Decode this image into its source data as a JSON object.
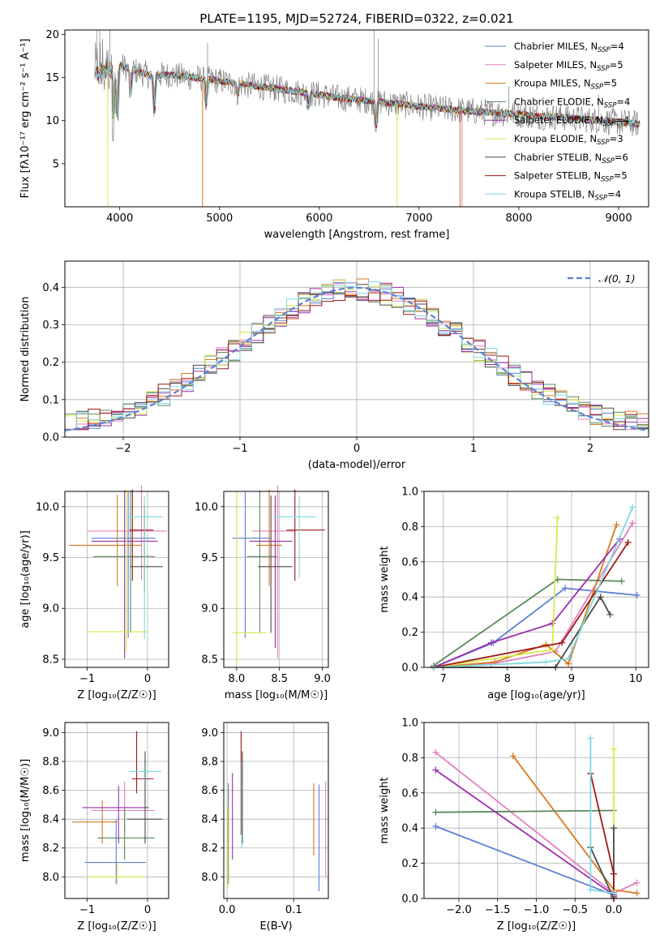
{
  "figure_title": "PLATE=1195, MJD=52724, FIBERID=0322, z=0.021",
  "colors": {
    "Chabrier MILES": "#5b7fd6",
    "Salpeter MILES": "#e37fbf",
    "Kroupa MILES": "#d67a1f",
    "Chabrier ELODIE": "#5a8a5a",
    "Salpeter ELODIE": "#9b2fae",
    "Kroupa ELODIE": "#d9e84a",
    "Chabrier STELIB": "#4a4a4a",
    "Salpeter STELIB": "#a01818",
    "Kroupa STELIB": "#7fd8e0",
    "data": "#808080",
    "normal": "#5b7fd6"
  },
  "chart_data": [
    {
      "id": "spectrum",
      "type": "line",
      "title": "PLATE=1195, MJD=52724, FIBERID=0322, z=0.021",
      "xlabel": "wavelength [Angstrom, rest frame]",
      "ylabel": "Flux [fλ10⁻¹⁷ erg cm⁻² s⁻¹ A⁻¹]",
      "xlim": [
        3450,
        9300
      ],
      "ylim": [
        0,
        20.5
      ],
      "xticks": [
        4000,
        5000,
        6000,
        7000,
        8000,
        9000
      ],
      "yticks": [
        5,
        10,
        15,
        20
      ],
      "grid": false,
      "legend_position": "top-right",
      "legend": [
        {
          "label": "Chabrier MILES, N",
          "sub": "SSP",
          "suffix": "=4"
        },
        {
          "label": "Salpeter MILES, N",
          "sub": "SSP",
          "suffix": "=5"
        },
        {
          "label": "Kroupa MILES, N",
          "sub": "SSP",
          "suffix": "=5"
        },
        {
          "label": "Chabrier ELODIE, N",
          "sub": "SSP",
          "suffix": "=4"
        },
        {
          "label": "Salpeter ELODIE, N",
          "sub": "SSP",
          "suffix": "=4"
        },
        {
          "label": "Kroupa ELODIE, N",
          "sub": "SSP",
          "suffix": "=3"
        },
        {
          "label": "Chabrier STELIB, N",
          "sub": "SSP",
          "suffix": "=6"
        },
        {
          "label": "Salpeter STELIB, N",
          "sub": "SSP",
          "suffix": "=5"
        },
        {
          "label": "Kroupa STELIB, N",
          "sub": "SSP",
          "suffix": "=4"
        }
      ],
      "continuum": {
        "x": [
          3750,
          3900,
          4000,
          4100,
          4300,
          4500,
          4800,
          5000,
          5200,
          5500,
          5800,
          6000,
          6200,
          6500,
          6800,
          7000,
          7200,
          7400,
          7600,
          7800,
          8000,
          8200,
          8400,
          8600,
          8800,
          9000,
          9200
        ],
        "y": [
          15.5,
          16.0,
          16.4,
          16.0,
          15.2,
          15.3,
          14.9,
          14.6,
          14.2,
          13.8,
          13.3,
          13.0,
          12.6,
          12.3,
          11.9,
          11.6,
          11.4,
          11.2,
          11.0,
          10.9,
          10.7,
          10.5,
          10.4,
          10.2,
          10.0,
          9.8,
          9.6
        ]
      }
    },
    {
      "id": "residuals",
      "type": "histogram",
      "xlabel": "(data-model)/error",
      "ylabel": "Normed distribution",
      "xlim": [
        -2.5,
        2.5
      ],
      "ylim": [
        0,
        0.47
      ],
      "xticks": [
        -2,
        -1,
        0,
        1,
        2
      ],
      "yticks": [
        0.0,
        0.1,
        0.2,
        0.3,
        0.4
      ],
      "grid": true,
      "legend_position": "top-right",
      "legend": [
        "𝒩(0, 1)"
      ],
      "bins": {
        "start": -2.5,
        "width": 0.1,
        "count": 50
      }
    },
    {
      "id": "age_vs_Z",
      "type": "scatter",
      "xlabel": "Z [log₁₀(Z/Z☉)]",
      "ylabel": "age  [log₁₀(age/yr)]",
      "xlim": [
        -1.37,
        0.35
      ],
      "ylim": [
        8.42,
        10.15
      ],
      "xticks": [
        -1,
        0
      ],
      "yticks": [
        8.5,
        9.0,
        9.5,
        10.0
      ],
      "grid": true,
      "points": [
        {
          "model": "Chabrier MILES",
          "x": -0.32,
          "y": 9.69,
          "xerr": [
            0.61,
            0.45
          ],
          "yerr": [
            0.98,
            0.45
          ]
        },
        {
          "model": "Salpeter MILES",
          "x": -0.1,
          "y": 9.76,
          "xerr": [
            0.9,
            0.42
          ],
          "yerr": [
            0.48,
            0.45
          ]
        },
        {
          "model": "Kroupa MILES",
          "x": -0.5,
          "y": 9.62,
          "xerr": [
            0.8,
            0.4
          ],
          "yerr": [
            0.4,
            0.5
          ]
        },
        {
          "model": "Chabrier ELODIE",
          "x": -0.28,
          "y": 9.51,
          "xerr": [
            0.62,
            0.4
          ],
          "yerr": [
            0.75,
            0.65
          ]
        },
        {
          "model": "Salpeter ELODIE",
          "x": -0.38,
          "y": 9.66,
          "xerr": [
            0.55,
            0.55
          ],
          "yerr": [
            1.15,
            0.5
          ]
        },
        {
          "model": "Kroupa ELODIE",
          "x": -0.35,
          "y": 8.77,
          "xerr": [
            0.65,
            0.38
          ],
          "yerr": [
            0.2,
            1.4
          ]
        },
        {
          "model": "Chabrier STELIB",
          "x": -0.05,
          "y": 9.41,
          "xerr": [
            0.24,
            0.3
          ],
          "yerr": [
            0.25,
            0.6
          ]
        },
        {
          "model": "Salpeter STELIB",
          "x": -0.25,
          "y": 9.77,
          "xerr": [
            0.05,
            0.35
          ],
          "yerr": [
            0.5,
            0.4
          ]
        },
        {
          "model": "Kroupa STELIB",
          "x": -0.05,
          "y": 9.9,
          "xerr": [
            0.3,
            0.3
          ],
          "yerr": [
            1.2,
            0.2
          ]
        }
      ]
    },
    {
      "id": "age_vs_mass",
      "type": "scatter",
      "xlabel": "mass [log₁₀(M/M☉)]",
      "ylabel": "",
      "xlim": [
        7.85,
        9.07
      ],
      "ylim": [
        8.42,
        10.15
      ],
      "xticks": [
        8.0,
        8.5,
        9.0
      ],
      "yticks": [
        8.5,
        9.0,
        9.5,
        10.0
      ],
      "grid": true,
      "points": [
        {
          "model": "Chabrier MILES",
          "x": 8.1,
          "y": 9.69,
          "xerr": [
            0.15,
            0.3
          ],
          "yerr": [
            0.98,
            0.45
          ]
        },
        {
          "model": "Salpeter MILES",
          "x": 8.48,
          "y": 9.76,
          "xerr": [
            0.3,
            0.2
          ],
          "yerr": [
            1.25,
            0.45
          ]
        },
        {
          "model": "Kroupa MILES",
          "x": 8.38,
          "y": 9.62,
          "xerr": [
            0.15,
            0.15
          ],
          "yerr": [
            0.4,
            0.55
          ]
        },
        {
          "model": "Chabrier ELODIE",
          "x": 8.27,
          "y": 9.51,
          "xerr": [
            0.15,
            0.2
          ],
          "yerr": [
            0.75,
            0.65
          ]
        },
        {
          "model": "Salpeter ELODIE",
          "x": 8.45,
          "y": 9.66,
          "xerr": [
            0.3,
            0.2
          ],
          "yerr": [
            1.05,
            0.45
          ]
        },
        {
          "model": "Kroupa ELODIE",
          "x": 8.0,
          "y": 8.76,
          "xerr": [
            0.05,
            0.35
          ],
          "yerr": [
            0.3,
            1.4
          ]
        },
        {
          "model": "Chabrier STELIB",
          "x": 8.4,
          "y": 9.41,
          "xerr": [
            0.15,
            0.25
          ],
          "yerr": [
            0.65,
            0.7
          ]
        },
        {
          "model": "Salpeter STELIB",
          "x": 8.68,
          "y": 9.77,
          "xerr": [
            0.1,
            0.35
          ],
          "yerr": [
            0.5,
            0.4
          ]
        },
        {
          "model": "Kroupa STELIB",
          "x": 8.73,
          "y": 9.9,
          "xerr": [
            0.3,
            0.2
          ],
          "yerr": [
            0.6,
            0.2
          ]
        }
      ]
    },
    {
      "id": "weight_vs_age",
      "type": "line",
      "xlabel": "age  [log₁₀(age/yr)]",
      "ylabel": "mass weight",
      "xlim": [
        6.7,
        10.2
      ],
      "ylim": [
        0,
        1.0
      ],
      "xticks": [
        7,
        8,
        9,
        10
      ],
      "yticks": [
        0.0,
        0.2,
        0.4,
        0.6,
        0.8,
        1.0
      ],
      "grid": true,
      "series": [
        {
          "model": "Chabrier MILES",
          "x": [
            6.85,
            7.78,
            8.9,
            10.02
          ],
          "y": [
            0.0,
            0.14,
            0.45,
            0.41
          ]
        },
        {
          "model": "Salpeter MILES",
          "x": [
            6.85,
            7.75,
            8.75,
            9.95
          ],
          "y": [
            0.0,
            0.02,
            0.09,
            0.82
          ]
        },
        {
          "model": "Kroupa MILES",
          "x": [
            6.85,
            7.8,
            8.6,
            8.95,
            9.7
          ],
          "y": [
            0.0,
            0.03,
            0.13,
            0.02,
            0.81
          ]
        },
        {
          "model": "Chabrier ELODIE",
          "x": [
            6.85,
            8.78,
            9.78
          ],
          "y": [
            0.01,
            0.5,
            0.49
          ]
        },
        {
          "model": "Salpeter ELODIE",
          "x": [
            6.85,
            7.75,
            8.7,
            9.75
          ],
          "y": [
            0.0,
            0.14,
            0.25,
            0.73
          ]
        },
        {
          "model": "Kroupa ELODIE",
          "x": [
            6.85,
            8.7,
            8.78
          ],
          "y": [
            0.0,
            0.1,
            0.85
          ]
        },
        {
          "model": "Chabrier STELIB",
          "x": [
            6.85,
            8.75,
            9.45,
            9.6
          ],
          "y": [
            0.0,
            0.0,
            0.4,
            0.3
          ]
        },
        {
          "model": "Salpeter STELIB",
          "x": [
            6.85,
            8.85,
            9.88
          ],
          "y": [
            0.0,
            0.14,
            0.71
          ]
        },
        {
          "model": "Kroupa STELIB",
          "x": [
            6.85,
            8.6,
            8.95,
            9.95
          ],
          "y": [
            0.0,
            0.03,
            0.05,
            0.91
          ]
        }
      ]
    },
    {
      "id": "mass_vs_Z",
      "type": "scatter",
      "xlabel": "Z [log₁₀(Z/Z☉)]",
      "ylabel": "mass [log₁₀(M/M☉)]",
      "xlim": [
        -1.37,
        0.35
      ],
      "ylim": [
        7.85,
        9.07
      ],
      "xticks": [
        -1,
        0
      ],
      "yticks": [
        8.0,
        8.2,
        8.4,
        8.6,
        8.8,
        9.0
      ],
      "grid": true,
      "points": [
        {
          "model": "Chabrier MILES",
          "x": -0.52,
          "y": 8.1,
          "xerr": [
            0.52,
            0.5
          ],
          "yerr": [
            0.15,
            0.3
          ]
        },
        {
          "model": "Salpeter MILES",
          "x": -0.38,
          "y": 8.46,
          "xerr": [
            0.55,
            0.5
          ],
          "yerr": [
            0.15,
            0.2
          ]
        },
        {
          "model": "Kroupa MILES",
          "x": -0.75,
          "y": 8.38,
          "xerr": [
            0.5,
            0.25
          ],
          "yerr": [
            0.15,
            0.15
          ]
        },
        {
          "model": "Chabrier ELODIE",
          "x": -0.38,
          "y": 8.27,
          "xerr": [
            0.45,
            0.5
          ],
          "yerr": [
            0.15,
            0.2
          ]
        },
        {
          "model": "Salpeter ELODIE",
          "x": -0.48,
          "y": 8.48,
          "xerr": [
            0.6,
            0.5
          ],
          "yerr": [
            0.25,
            0.15
          ]
        },
        {
          "model": "Kroupa ELODIE",
          "x": -0.5,
          "y": 8.0,
          "xerr": [
            0.5,
            0.45
          ],
          "yerr": [
            0.05,
            0.1
          ]
        },
        {
          "model": "Chabrier STELIB",
          "x": -0.04,
          "y": 8.4,
          "xerr": [
            0.3,
            0.28
          ],
          "yerr": [
            0.17,
            0.47
          ]
        },
        {
          "model": "Salpeter STELIB",
          "x": -0.18,
          "y": 8.68,
          "xerr": [
            0.08,
            0.28
          ],
          "yerr": [
            0.1,
            0.33
          ]
        },
        {
          "model": "Kroupa STELIB",
          "x": -0.05,
          "y": 8.73,
          "xerr": [
            0.25,
            0.28
          ],
          "yerr": [
            0.06,
            0.05
          ]
        }
      ]
    },
    {
      "id": "mass_vs_ebv",
      "type": "scatter",
      "xlabel": "E(B-V)",
      "ylabel": "",
      "xlim": [
        -0.005,
        0.152
      ],
      "ylim": [
        7.85,
        9.07
      ],
      "xticks": [
        0.0,
        0.1
      ],
      "yticks": [
        8.0,
        8.2,
        8.4,
        8.6,
        8.8,
        9.0
      ],
      "grid": true,
      "points": [
        {
          "model": "Chabrier MILES",
          "x": 0.138,
          "y": 8.27,
          "yerr": [
            0.37,
            0.37
          ]
        },
        {
          "model": "Salpeter MILES",
          "x": 0.148,
          "y": 8.33,
          "yerr": [
            0.33,
            0.33
          ]
        },
        {
          "model": "Kroupa MILES",
          "x": 0.13,
          "y": 8.4,
          "yerr": [
            0.25,
            0.25
          ]
        },
        {
          "model": "Chabrier ELODIE",
          "x": 0.002,
          "y": 8.3,
          "yerr": [
            0.35,
            0.35
          ]
        },
        {
          "model": "Salpeter ELODIE",
          "x": 0.008,
          "y": 8.42,
          "yerr": [
            0.3,
            0.3
          ]
        },
        {
          "model": "Kroupa ELODIE",
          "x": 0.001,
          "y": 8.2,
          "yerr": [
            0.28,
            0.28
          ]
        },
        {
          "model": "Chabrier STELIB",
          "x": 0.023,
          "y": 8.55,
          "yerr": [
            0.32,
            0.32
          ]
        },
        {
          "model": "Salpeter STELIB",
          "x": 0.021,
          "y": 8.65,
          "yerr": [
            0.36,
            0.36
          ]
        },
        {
          "model": "Kroupa STELIB",
          "x": 0.022,
          "y": 8.5,
          "yerr": [
            0.3,
            0.3
          ]
        }
      ]
    },
    {
      "id": "weight_vs_Z",
      "type": "line",
      "xlabel": "Z [log₁₀(Z/Z☉)]",
      "ylabel": "mass weight",
      "xlim": [
        -2.45,
        0.45
      ],
      "ylim": [
        0,
        1.0
      ],
      "xticks": [
        -2.0,
        -1.5,
        -1.0,
        -0.5,
        0.0
      ],
      "yticks": [
        0.0,
        0.2,
        0.4,
        0.6,
        0.8,
        1.0
      ],
      "grid": true,
      "series": [
        {
          "model": "Chabrier MILES",
          "x": [
            -2.3,
            0.0
          ],
          "y": [
            0.41,
            0.02
          ]
        },
        {
          "model": "Salpeter MILES",
          "x": [
            -2.3,
            0.0,
            0.3
          ],
          "y": [
            0.83,
            0.03,
            0.09
          ]
        },
        {
          "model": "Kroupa MILES",
          "x": [
            -1.3,
            0.0,
            0.3
          ],
          "y": [
            0.81,
            0.05,
            0.03
          ]
        },
        {
          "model": "Chabrier ELODIE",
          "x": [
            -2.3,
            0.0
          ],
          "y": [
            0.49,
            0.5
          ]
        },
        {
          "model": "Salpeter ELODIE",
          "x": [
            -2.3,
            0.0
          ],
          "y": [
            0.73,
            0.02
          ]
        },
        {
          "model": "Kroupa ELODIE",
          "x": [
            0.0,
            0.0
          ],
          "y": [
            0.85,
            0.05
          ]
        },
        {
          "model": "Chabrier STELIB",
          "x": [
            -0.3,
            0.0,
            0.0,
            0.0
          ],
          "y": [
            0.29,
            0.0,
            0.4,
            0.01
          ]
        },
        {
          "model": "Salpeter STELIB",
          "x": [
            -0.3,
            0.0,
            0.0
          ],
          "y": [
            0.71,
            0.14,
            0.0
          ]
        },
        {
          "model": "Kroupa STELIB",
          "x": [
            -0.3,
            -0.3,
            0.0
          ],
          "y": [
            0.91,
            0.05,
            0.03
          ]
        }
      ]
    }
  ]
}
